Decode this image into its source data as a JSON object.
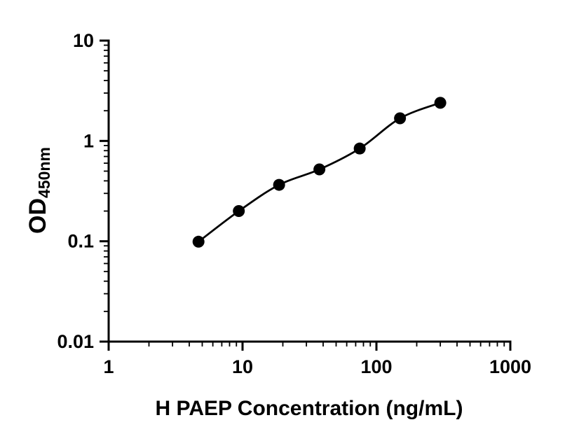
{
  "figure": {
    "background": "#ffffff",
    "plot_color": "#000000"
  },
  "chart_data": {
    "type": "scatter",
    "title": "",
    "xlabel": "H PAEP Concentration (ng/mL)",
    "ylabel_main": "OD",
    "ylabel_sub": "450nm",
    "ylabel": "OD450nm",
    "x_scale": "log",
    "y_scale": "log",
    "xlim": [
      1,
      1000
    ],
    "ylim": [
      0.01,
      10
    ],
    "x_ticks": [
      1,
      10,
      100,
      1000
    ],
    "x_tick_labels": [
      "1",
      "10",
      "100",
      "1000"
    ],
    "y_ticks": [
      0.01,
      0.1,
      1,
      10
    ],
    "y_tick_labels": [
      "0.01",
      "0.1",
      "1",
      "10"
    ],
    "minor_ticks": true,
    "grid": false,
    "legend": false,
    "series": [
      {
        "marker": "circle",
        "marker_color": "#000000",
        "line_color": "#000000",
        "smooth_curve": true,
        "x": [
          4.69,
          9.38,
          18.75,
          37.5,
          75,
          150,
          300
        ],
        "y": [
          0.099,
          0.2,
          0.365,
          0.52,
          0.84,
          1.68,
          2.4
        ]
      }
    ]
  }
}
